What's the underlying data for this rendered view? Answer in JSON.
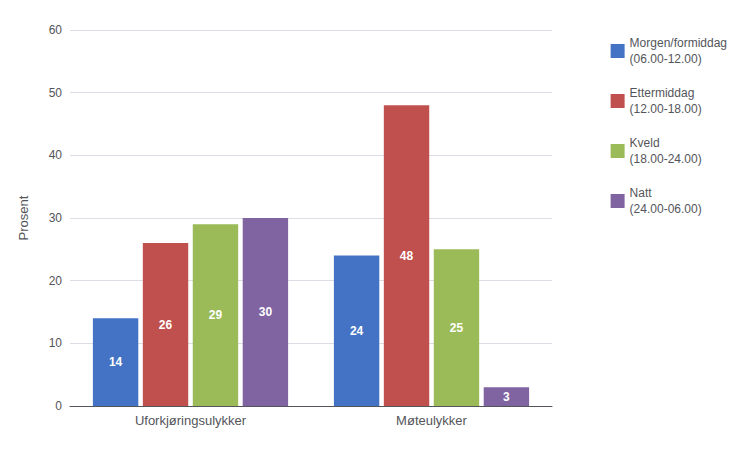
{
  "chart_data": {
    "type": "bar",
    "categories": [
      "Uforkjøringsulykker",
      "Møteulykker"
    ],
    "series": [
      {
        "name": "Morgen/formiddag\n(06.00-12.00)",
        "color": "#4472C4",
        "values": [
          14,
          24
        ]
      },
      {
        "name": "Ettermiddag\n(12.00-18.00)",
        "color": "#C0504D",
        "values": [
          26,
          48
        ]
      },
      {
        "name": "Kveld\n(18.00-24.00)",
        "color": "#9BBB59",
        "values": [
          29,
          25
        ]
      },
      {
        "name": "Natt\n(24.00-06.00)",
        "color": "#8064A2",
        "values": [
          30,
          3
        ]
      }
    ],
    "ylabel": "Prosent",
    "ylim": [
      0,
      60
    ],
    "yticks": [
      0,
      10,
      20,
      30,
      40,
      50,
      60
    ],
    "grid": true,
    "data_labels": true,
    "legend": "right"
  }
}
